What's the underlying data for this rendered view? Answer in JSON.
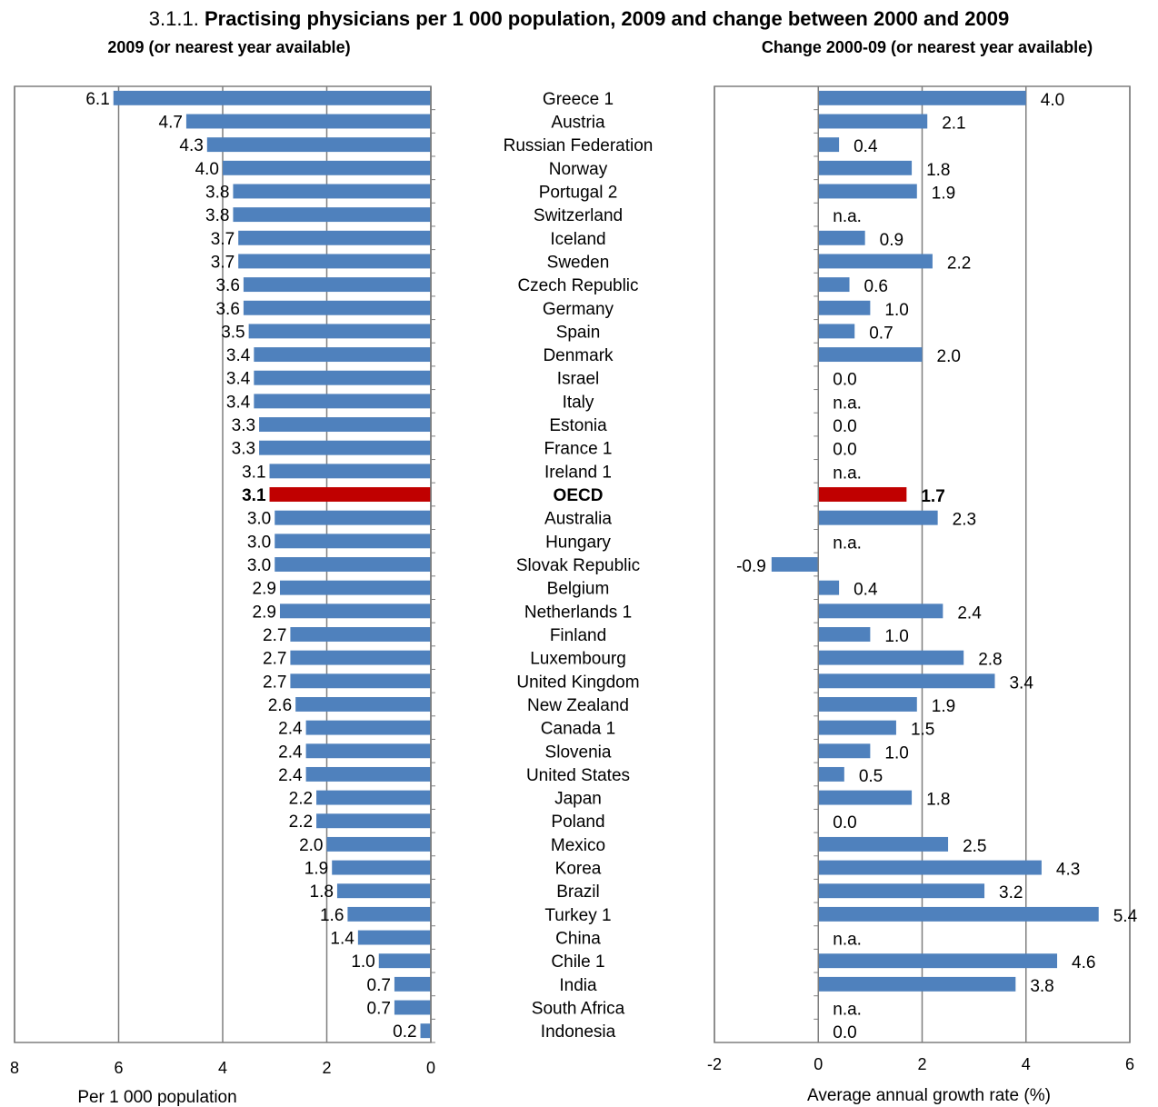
{
  "chart_data": {
    "type": "bar",
    "title": {
      "number": "3.1.1.",
      "text": "Practising physicians per 1 000 population, 2009 and change between 2000 and 2009"
    },
    "categories": [
      "Greece 1",
      "Austria",
      "Russian Federation",
      "Norway",
      "Portugal 2",
      "Switzerland",
      "Iceland",
      "Sweden",
      "Czech Republic",
      "Germany",
      "Spain",
      "Denmark",
      "Israel",
      "Italy",
      "Estonia",
      "France 1",
      "Ireland 1",
      "OECD",
      "Australia",
      "Hungary",
      "Slovak Republic",
      "Belgium",
      "Netherlands 1",
      "Finland",
      "Luxembourg",
      "United Kingdom",
      "New Zealand",
      "Canada 1",
      "Slovenia",
      "United States",
      "Japan",
      "Poland",
      "Mexico",
      "Korea",
      "Brazil",
      "Turkey 1",
      "China",
      "Chile 1",
      "India",
      "South Africa",
      "Indonesia"
    ],
    "highlight_category": "OECD",
    "colors": {
      "bar": "#4f81bd",
      "highlight": "#c00000",
      "grid": "#7f7f7f",
      "axis": "#7f7f7f"
    },
    "left_panel": {
      "subtitle": "2009 (or nearest year available)",
      "xlabel": "Per 1 000 population",
      "xlim": [
        8,
        0
      ],
      "ticks": [
        "8",
        "6",
        "4",
        "2",
        "0"
      ],
      "tick_values": [
        8,
        6,
        4,
        2,
        0
      ],
      "values": [
        6.1,
        4.7,
        4.3,
        4.0,
        3.8,
        3.8,
        3.7,
        3.7,
        3.6,
        3.6,
        3.5,
        3.4,
        3.4,
        3.4,
        3.3,
        3.3,
        3.1,
        3.1,
        3.0,
        3.0,
        3.0,
        2.9,
        2.9,
        2.7,
        2.7,
        2.7,
        2.6,
        2.4,
        2.4,
        2.4,
        2.2,
        2.2,
        2.0,
        1.9,
        1.8,
        1.6,
        1.4,
        1.0,
        0.7,
        0.7,
        0.2
      ],
      "labels": [
        "6.1",
        "4.7",
        "4.3",
        "4.0",
        "3.8",
        "3.8",
        "3.7",
        "3.7",
        "3.6",
        "3.6",
        "3.5",
        "3.4",
        "3.4",
        "3.4",
        "3.3",
        "3.3",
        "3.1",
        "3.1",
        "3.0",
        "3.0",
        "3.0",
        "2.9",
        "2.9",
        "2.7",
        "2.7",
        "2.7",
        "2.6",
        "2.4",
        "2.4",
        "2.4",
        "2.2",
        "2.2",
        "2.0",
        "1.9",
        "1.8",
        "1.6",
        "1.4",
        "1.0",
        "0.7",
        "0.7",
        "0.2"
      ]
    },
    "right_panel": {
      "subtitle": "Change 2000-09 (or nearest year available)",
      "xlabel": "Average annual growth rate (%)",
      "xlim": [
        -2,
        6
      ],
      "ticks": [
        "-2",
        "0",
        "2",
        "4",
        "6"
      ],
      "tick_values": [
        -2,
        0,
        2,
        4,
        6
      ],
      "values": [
        4.0,
        2.1,
        0.4,
        1.8,
        1.9,
        null,
        0.9,
        2.2,
        0.6,
        1.0,
        0.7,
        2.0,
        0.0,
        null,
        0.0,
        0.0,
        null,
        1.7,
        2.3,
        null,
        -0.9,
        0.4,
        2.4,
        1.0,
        2.8,
        3.4,
        1.9,
        1.5,
        1.0,
        0.5,
        1.8,
        0.0,
        2.5,
        4.3,
        3.2,
        5.4,
        null,
        4.6,
        3.8,
        null,
        0.0
      ],
      "labels": [
        "4.0",
        "2.1",
        "0.4",
        "1.8",
        "1.9",
        "n.a.",
        "0.9",
        "2.2",
        "0.6",
        "1.0",
        "0.7",
        "2.0",
        "0.0",
        "n.a.",
        "0.0",
        "0.0",
        "n.a.",
        "1.7",
        "2.3",
        "n.a.",
        "-0.9",
        "0.4",
        "2.4",
        "1.0",
        "2.8",
        "3.4",
        "1.9",
        "1.5",
        "1.0",
        "0.5",
        "1.8",
        "0.0",
        "2.5",
        "4.3",
        "3.2",
        "5.4",
        "n.a.",
        "4.6",
        "3.8",
        "n.a.",
        "0.0"
      ]
    }
  }
}
